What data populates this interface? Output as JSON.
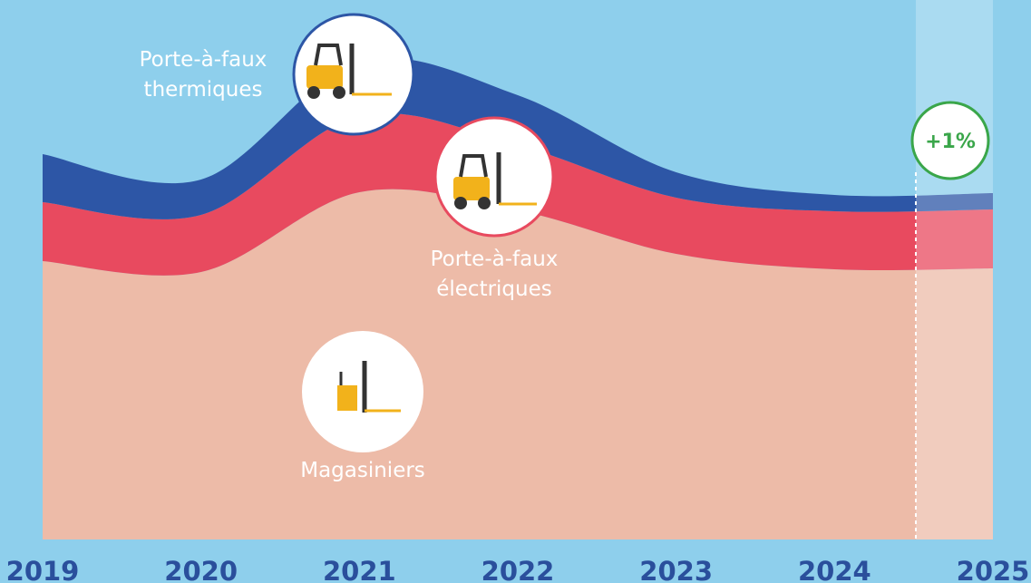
{
  "chart_data": {
    "type": "stacked_area",
    "categories": [
      "2019",
      "2020",
      "2021",
      "2022",
      "2023",
      "2024",
      "2025"
    ],
    "series": [
      {
        "name": "Magasiniers",
        "color": "#edbba8",
        "values": [
          307,
          295,
          383,
          363,
          315,
          298,
          299
        ]
      },
      {
        "name": "Porte-à-faux électriques",
        "color": "#e84a5f",
        "values": [
          65,
          63,
          84,
          72,
          62,
          64,
          65
        ]
      },
      {
        "name": "Porte-à-faux thermiques",
        "color": "#2d56a6",
        "values": [
          53,
          39,
          60,
          55,
          28,
          18,
          18
        ]
      }
    ],
    "ylim": [
      0,
      595
    ],
    "annotation": "+1%"
  }
}
